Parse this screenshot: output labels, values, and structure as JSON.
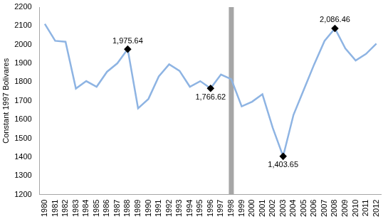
{
  "chart_data": {
    "type": "line",
    "y_label": "Constant 1997 Bolivares",
    "categories": [
      "1980",
      "1981",
      "1982",
      "1983",
      "1984",
      "1985",
      "1986",
      "1987",
      "1988",
      "1989",
      "1990",
      "1991",
      "1992",
      "1993",
      "1994",
      "1995",
      "1996",
      "1997",
      "1998",
      "1999",
      "2000",
      "2001",
      "2002",
      "2003",
      "2004",
      "2005",
      "2006",
      "2007",
      "2008",
      "2009",
      "2010",
      "2011",
      "2012"
    ],
    "values": [
      2110,
      2020,
      2015,
      1765,
      1805,
      1775,
      1855,
      1900,
      1975.64,
      1660,
      1710,
      1830,
      1895,
      1860,
      1775,
      1805,
      1766.62,
      1840,
      1815,
      1670,
      1695,
      1735,
      1555,
      1403.65,
      1625,
      1760,
      1895,
      2020,
      2086.46,
      1980,
      1915,
      1950,
      2005
    ],
    "color": "#8eb4e3",
    "ylim": [
      1200,
      2200
    ],
    "yticks": [
      1200,
      1300,
      1400,
      1500,
      1600,
      1700,
      1800,
      1900,
      2000,
      2100,
      2200
    ],
    "grid": false,
    "vertical_band": {
      "x": "1998",
      "color": "#a6a6a6"
    },
    "annotations": [
      {
        "x": "1988",
        "label": "1,975.64"
      },
      {
        "x": "1996",
        "label": "1,766.62"
      },
      {
        "x": "2003",
        "label": "1,403.65"
      },
      {
        "x": "2008",
        "label": "2,086.46"
      }
    ]
  }
}
